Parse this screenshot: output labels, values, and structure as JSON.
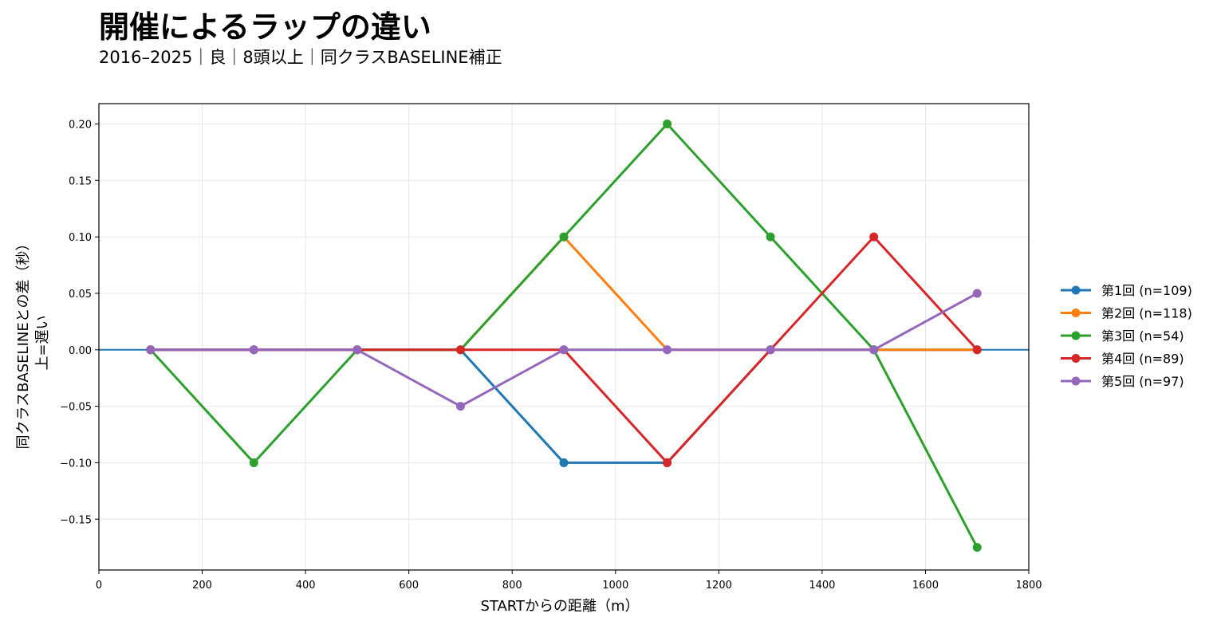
{
  "chart_data": {
    "type": "line",
    "title": "開催によるラップの違い",
    "subtitle": "2016–2025｜良｜8頭以上｜同クラスBASELINE補正",
    "xlabel": "STARTからの距離（m）",
    "ylabel_line1": "同クラスBASELINEとの差（秒）",
    "ylabel_line2": "上=遅い",
    "xlim": [
      0,
      1800
    ],
    "ylim": [
      -0.195,
      0.218
    ],
    "xticks": [
      0,
      200,
      400,
      600,
      800,
      1000,
      1200,
      1400,
      1600,
      1800
    ],
    "xtick_labels": [
      "0",
      "200",
      "400",
      "600",
      "800",
      "1000",
      "1200",
      "1400",
      "1600",
      "1800"
    ],
    "yticks": [
      -0.15,
      -0.1,
      -0.05,
      0.0,
      0.05,
      0.1,
      0.15,
      0.2
    ],
    "ytick_labels": [
      "−0.15",
      "−0.10",
      "−0.05",
      "0.00",
      "0.05",
      "0.10",
      "0.15",
      "0.20"
    ],
    "grid": true,
    "legend_position": "right",
    "reference_line": {
      "y": 0,
      "color": "#1f77b4"
    },
    "x": [
      100,
      300,
      500,
      700,
      900,
      1100,
      1300,
      1500,
      1700
    ],
    "series": [
      {
        "name": "第1回 (n=109)",
        "color": "#1f77b4",
        "values": [
          0,
          0,
          0,
          0,
          -0.1,
          -0.1,
          0,
          0,
          0
        ]
      },
      {
        "name": "第2回 (n=118)",
        "color": "#ff7f0e",
        "values": [
          0,
          0,
          0,
          0,
          0.1,
          0,
          0,
          0,
          0
        ]
      },
      {
        "name": "第3回 (n=54)",
        "color": "#2ca02c",
        "values": [
          0,
          -0.1,
          0,
          0,
          0.1,
          0.2,
          0.1,
          0,
          -0.175
        ]
      },
      {
        "name": "第4回 (n=89)",
        "color": "#d62728",
        "values": [
          0,
          0,
          0,
          0,
          0,
          -0.1,
          0,
          0.1,
          0
        ]
      },
      {
        "name": "第5回 (n=97)",
        "color": "#9467bd",
        "values": [
          0,
          0,
          0,
          -0.05,
          0,
          0,
          0,
          0,
          0.05
        ]
      }
    ]
  }
}
